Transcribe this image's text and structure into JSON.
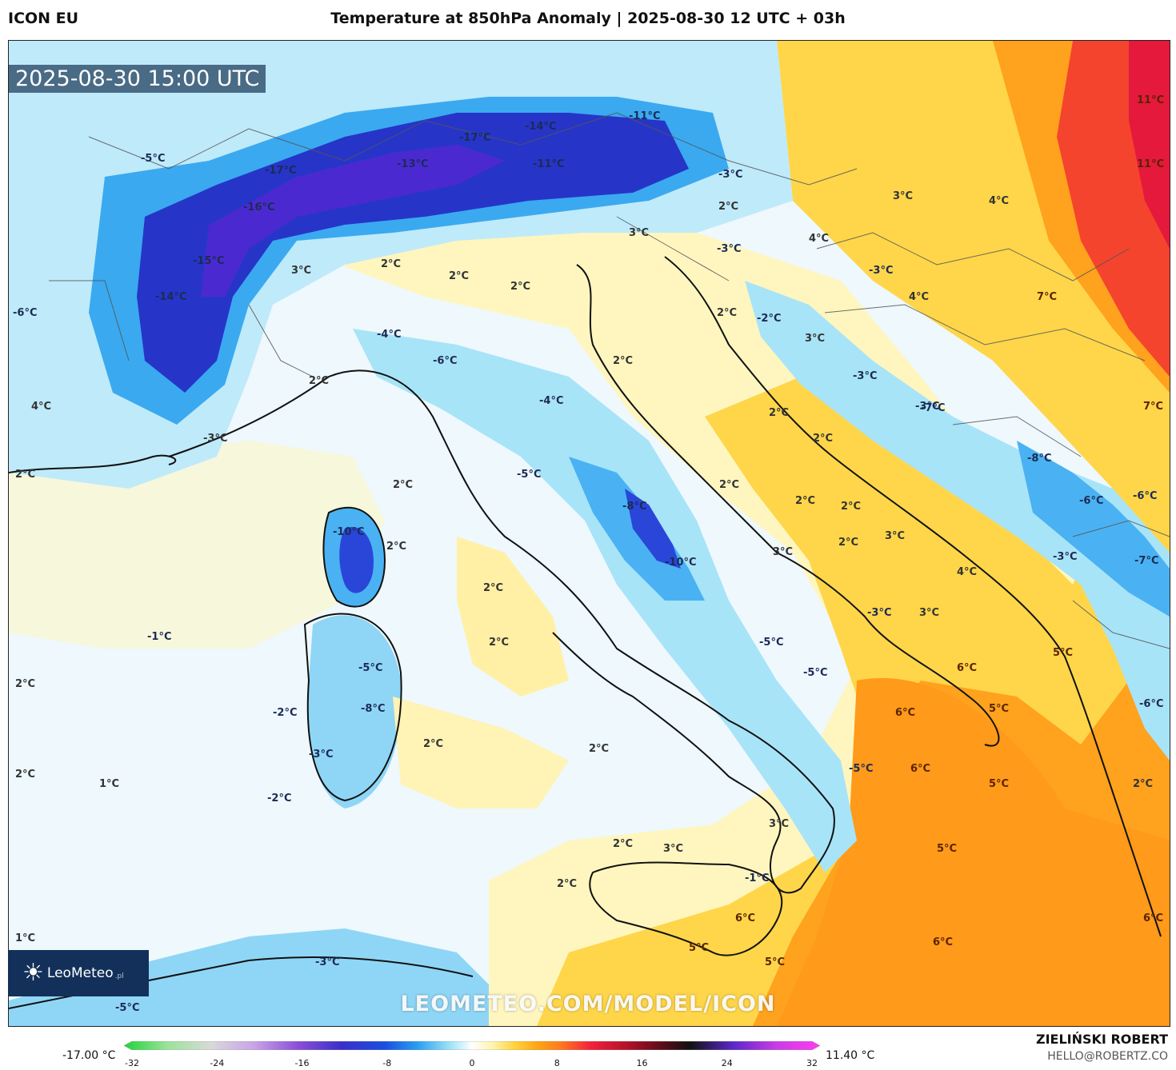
{
  "header": {
    "model": "ICON EU",
    "title": "Temperature at 850hPa Anomaly | 2025-08-30 12 UTC + 03h"
  },
  "map": {
    "timestamp": "2025-08-30 15:00 UTC",
    "watermark": "LEOMETEO.COM/MODEL/ICON",
    "logo": {
      "name": "LeoMeteo",
      "suffix": ".pl",
      "icon": "sun-icon"
    },
    "labels": [
      {
        "text": "-5°C"
      },
      {
        "text": "-17°C"
      },
      {
        "text": "-16°C"
      },
      {
        "text": "-15°C"
      },
      {
        "text": "-14°C"
      },
      {
        "text": "-6°C"
      },
      {
        "text": "-13°C"
      },
      {
        "text": "-17°C"
      },
      {
        "text": "-14°C"
      },
      {
        "text": "-11°C"
      },
      {
        "text": "-11°C"
      },
      {
        "text": "11°C"
      },
      {
        "text": "11°C"
      },
      {
        "text": "-3°C"
      },
      {
        "text": "2°C"
      },
      {
        "text": "3°C"
      },
      {
        "text": "4°C"
      },
      {
        "text": "4°C"
      },
      {
        "text": "-3°C"
      },
      {
        "text": "3°C"
      },
      {
        "text": "3°C"
      },
      {
        "text": "2°C"
      },
      {
        "text": "2°C"
      },
      {
        "text": "-3°C"
      },
      {
        "text": "2°C"
      },
      {
        "text": "2°C"
      },
      {
        "text": "-2°C"
      },
      {
        "text": "3°C"
      },
      {
        "text": "4°C"
      },
      {
        "text": "7°C"
      },
      {
        "text": "-3°C"
      },
      {
        "text": "-4°C"
      },
      {
        "text": "-6°C"
      },
      {
        "text": "2°C"
      },
      {
        "text": "2°C"
      },
      {
        "text": "-3°C"
      },
      {
        "text": "-7°C"
      },
      {
        "text": "7°C"
      },
      {
        "text": "4°C"
      },
      {
        "text": "-3°C"
      },
      {
        "text": "-4°C"
      },
      {
        "text": "2°C"
      },
      {
        "text": "2°C"
      },
      {
        "text": "-8°C"
      },
      {
        "text": "2°C"
      },
      {
        "text": "-5°C"
      },
      {
        "text": "2°C"
      },
      {
        "text": "2°C"
      },
      {
        "text": "-6°C"
      },
      {
        "text": "-6°C"
      },
      {
        "text": "2°C"
      },
      {
        "text": "-8°C"
      },
      {
        "text": "2°C"
      },
      {
        "text": "3°C"
      },
      {
        "text": "-10°C"
      },
      {
        "text": "2°C"
      },
      {
        "text": "2°C"
      },
      {
        "text": "-10°C"
      },
      {
        "text": "3°C"
      },
      {
        "text": "4°C"
      },
      {
        "text": "-3°C"
      },
      {
        "text": "-7°C"
      },
      {
        "text": "2°C"
      },
      {
        "text": "-1°C"
      },
      {
        "text": "2°C"
      },
      {
        "text": "-3°C"
      },
      {
        "text": "3°C"
      },
      {
        "text": "-5°C"
      },
      {
        "text": "-5°C"
      },
      {
        "text": "-5°C"
      },
      {
        "text": "6°C"
      },
      {
        "text": "5°C"
      },
      {
        "text": "2°C"
      },
      {
        "text": "-2°C"
      },
      {
        "text": "-8°C"
      },
      {
        "text": "6°C"
      },
      {
        "text": "5°C"
      },
      {
        "text": "-6°C"
      },
      {
        "text": "2°C"
      },
      {
        "text": "2°C"
      },
      {
        "text": "-3°C"
      },
      {
        "text": "2°C"
      },
      {
        "text": "-5°C"
      },
      {
        "text": "6°C"
      },
      {
        "text": "5°C"
      },
      {
        "text": "2°C"
      },
      {
        "text": "1°C"
      },
      {
        "text": "-2°C"
      },
      {
        "text": "3°C"
      },
      {
        "text": "2°C"
      },
      {
        "text": "3°C"
      },
      {
        "text": "5°C"
      },
      {
        "text": "2°C"
      },
      {
        "text": "-1°C"
      },
      {
        "text": "6°C"
      },
      {
        "text": "1°C"
      },
      {
        "text": "5°C"
      },
      {
        "text": "5°C"
      },
      {
        "text": "6°C"
      },
      {
        "text": "-3°C"
      },
      {
        "text": "-5°C"
      },
      {
        "text": "6°C"
      }
    ]
  },
  "colorbar": {
    "min_label": "-17.00 °C",
    "max_label": "11.40 °C",
    "ticks": [
      "-32",
      "-24",
      "-16",
      "-8",
      "0",
      "8",
      "16",
      "24",
      "32"
    ],
    "range": [
      -32,
      32
    ],
    "stops": [
      {
        "v": -32,
        "c": "#1fd43a"
      },
      {
        "v": -28,
        "c": "#9be39a"
      },
      {
        "v": -24,
        "c": "#d9d9d9"
      },
      {
        "v": -20,
        "c": "#c8a3e6"
      },
      {
        "v": -16,
        "c": "#8a4fd8"
      },
      {
        "v": -12,
        "c": "#3a2fc9"
      },
      {
        "v": -8,
        "c": "#1a4fe0"
      },
      {
        "v": -5,
        "c": "#2a9ff0"
      },
      {
        "v": -2,
        "c": "#9fe3f7"
      },
      {
        "v": 0,
        "c": "#ffffff"
      },
      {
        "v": 2,
        "c": "#fff3a8"
      },
      {
        "v": 4,
        "c": "#ffd23a"
      },
      {
        "v": 6,
        "c": "#ffa514"
      },
      {
        "v": 8,
        "c": "#ff7d1e"
      },
      {
        "v": 11,
        "c": "#f0203c"
      },
      {
        "v": 14,
        "c": "#b8122c"
      },
      {
        "v": 17,
        "c": "#6a0c1c"
      },
      {
        "v": 20,
        "c": "#111111"
      },
      {
        "v": 24,
        "c": "#5a28c8"
      },
      {
        "v": 28,
        "c": "#c83ce6"
      },
      {
        "v": 32,
        "c": "#ff3cf0"
      }
    ]
  },
  "footer": {
    "author": "ZIELIŃSKI ROBERT",
    "email": "HELLO@ROBERTZ.CO"
  }
}
